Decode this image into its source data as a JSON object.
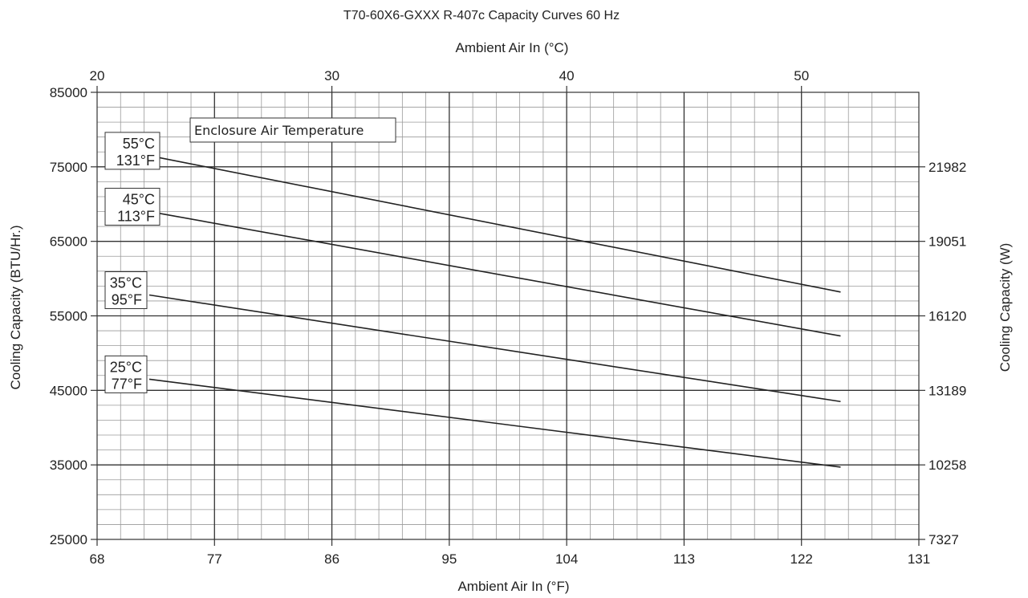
{
  "chart_data": {
    "type": "line",
    "title": "T70-60X6-GXXX R-407c Capacity Curves 60 Hz",
    "xlabel": "Ambient Air In (°F)",
    "x2label": "Ambient Air In (°C)",
    "ylabel": "Cooling Capacity (BTU/Hr.)",
    "y2label": "Cooling Capacity (W)",
    "xlim": [
      68,
      131
    ],
    "ylim": [
      25000,
      85000
    ],
    "x2lim": [
      20,
      55
    ],
    "x_ticks": [
      68,
      77,
      86,
      95,
      104,
      113,
      122,
      131
    ],
    "x2_ticks": [
      20,
      30,
      40,
      50
    ],
    "y_ticks": [
      25000,
      35000,
      45000,
      55000,
      65000,
      75000,
      85000
    ],
    "y2_ticks": [
      {
        "y": 25000,
        "label": "7327"
      },
      {
        "y": 35000,
        "label": "10258"
      },
      {
        "y": 45000,
        "label": "13189"
      },
      {
        "y": 55000,
        "label": "16120"
      },
      {
        "y": 65000,
        "label": "19051"
      },
      {
        "y": 75000,
        "label": "21982"
      }
    ],
    "grid": true,
    "legend_title": "Enclosure Air Temperature",
    "series": [
      {
        "name": "55°C 131°F",
        "label_c": "55°C",
        "label_f": "131°F",
        "x": [
          72,
          125
        ],
        "y": [
          76500,
          58200
        ]
      },
      {
        "name": "45°C 113°F",
        "label_c": "45°C",
        "label_f": "113°F",
        "x": [
          72,
          125
        ],
        "y": [
          69000,
          52300
        ]
      },
      {
        "name": "35°C 95°F",
        "label_c": "35°C",
        "label_f": "95°F",
        "x": [
          72,
          125
        ],
        "y": [
          57800,
          43500
        ]
      },
      {
        "name": "25°C 77°F",
        "label_c": "25°C",
        "label_f": "77°F",
        "x": [
          72,
          125
        ],
        "y": [
          46500,
          34700
        ]
      }
    ]
  }
}
